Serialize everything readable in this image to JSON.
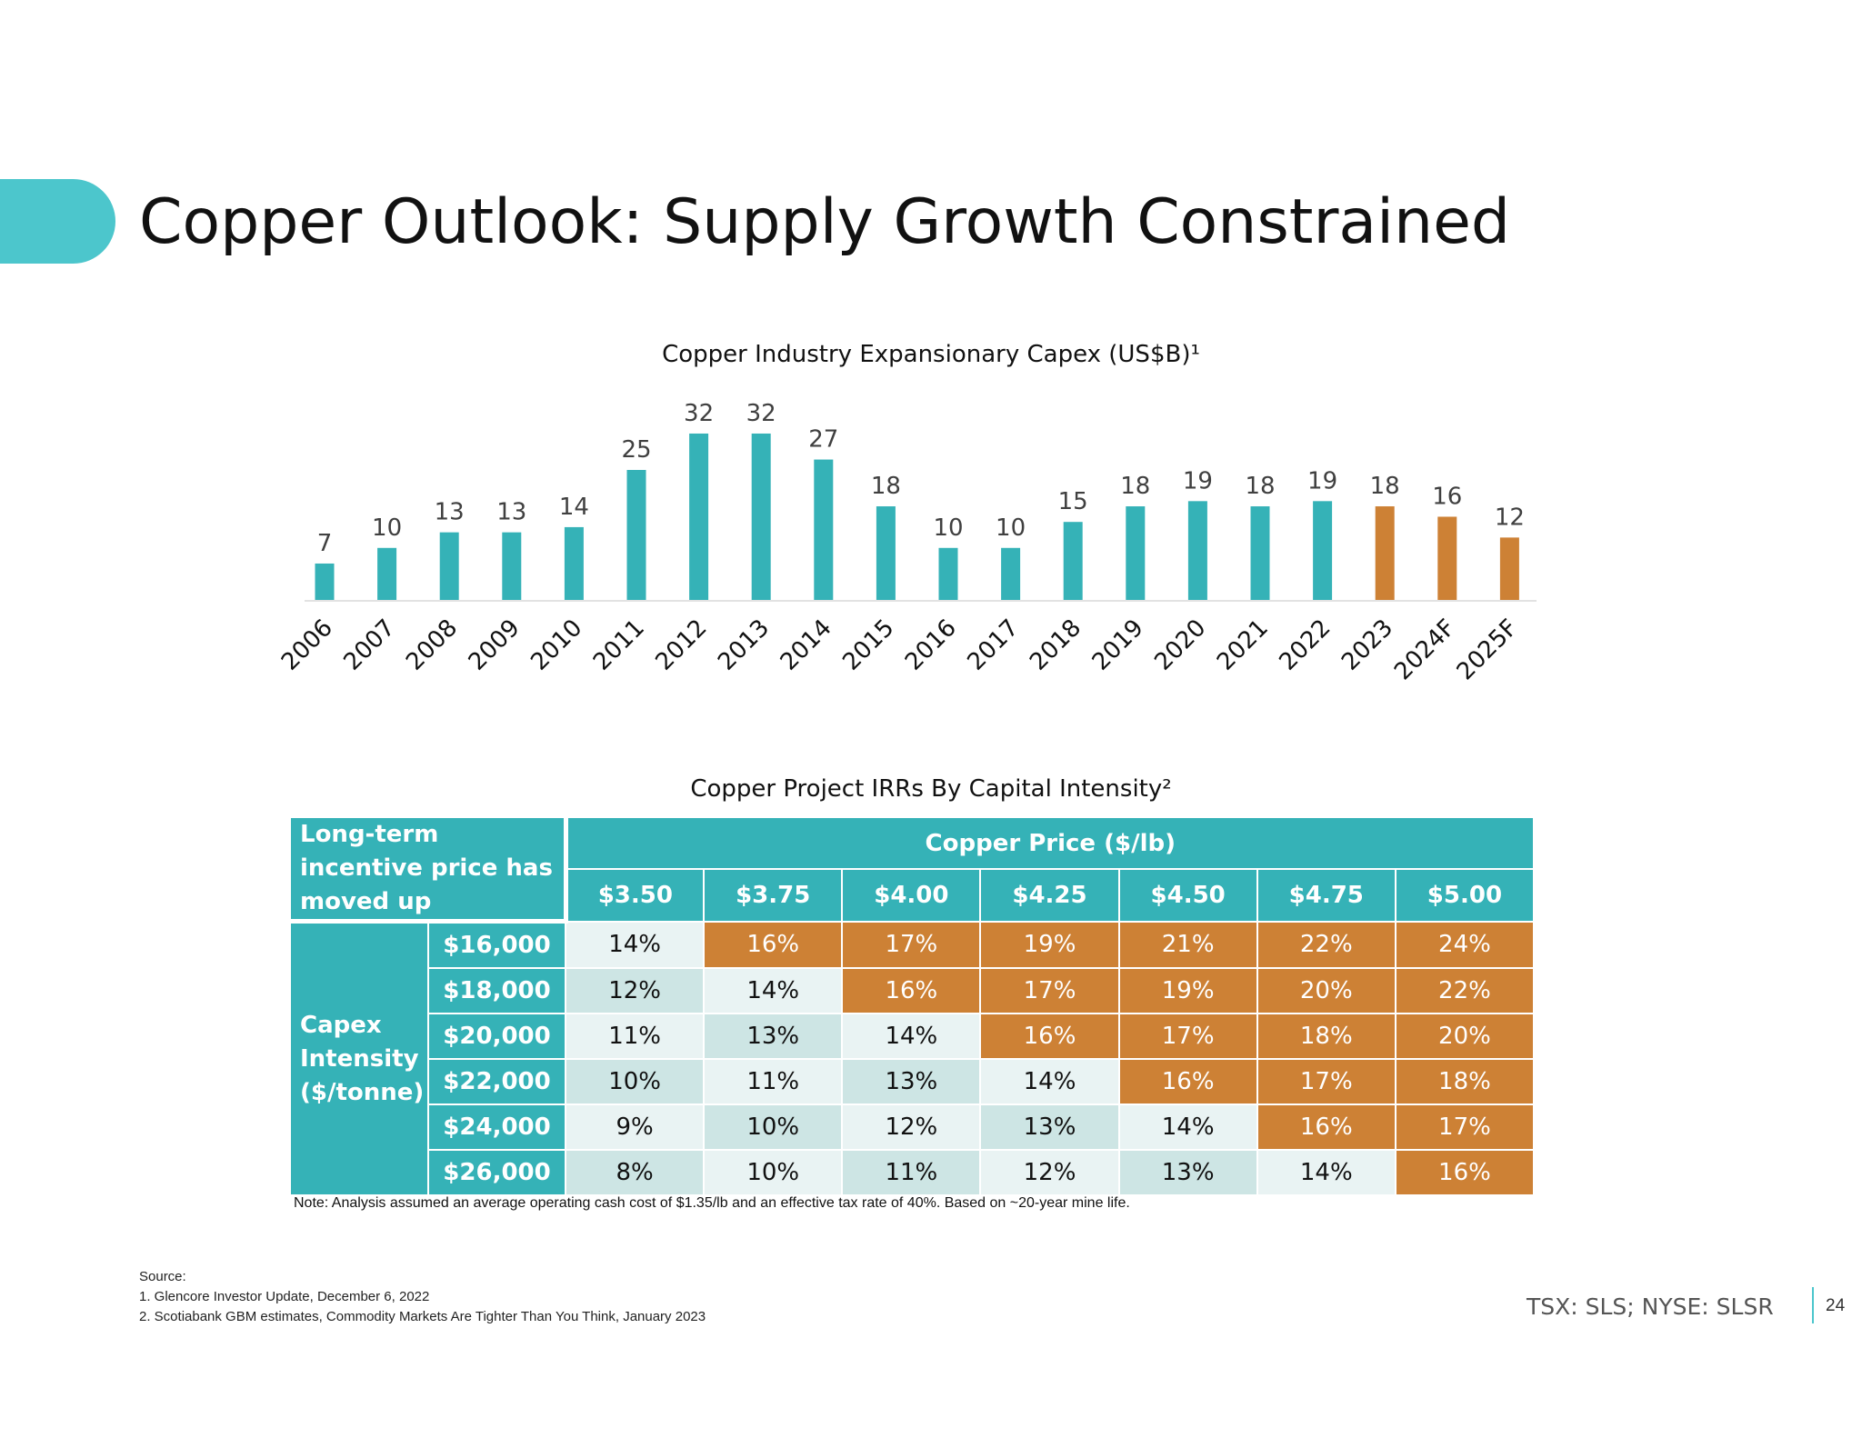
{
  "header": {
    "title": "Copper Outlook: Supply Growth Constrained"
  },
  "chart_data": {
    "type": "bar",
    "title": "Copper Industry Expansionary Capex (US$B)¹",
    "categories": [
      "2006",
      "2007",
      "2008",
      "2009",
      "2010",
      "2011",
      "2012",
      "2013",
      "2014",
      "2015",
      "2016",
      "2017",
      "2018",
      "2019",
      "2020",
      "2021",
      "2022",
      "2023",
      "2024F",
      "2025F"
    ],
    "values": [
      7,
      10,
      13,
      13,
      14,
      25,
      32,
      32,
      27,
      18,
      10,
      10,
      15,
      18,
      19,
      18,
      19,
      18,
      16,
      12
    ],
    "forecast_from_index": 17,
    "ylim": [
      0,
      35
    ],
    "xlabel": "",
    "ylabel": "",
    "grid": false,
    "colors": {
      "actual": "#35b2b7",
      "forecast": "#cd8135"
    }
  },
  "table": {
    "title": "Copper Project IRRs By Capital Intensity²",
    "corner_label": "Long-term incentive price has moved up",
    "price_header": "Copper Price ($/lb)",
    "row_group_label": "Capex Intensity ($/tonne)",
    "prices": [
      "$3.50",
      "$3.75",
      "$4.00",
      "$4.25",
      "$4.50",
      "$4.75",
      "$5.00"
    ],
    "rows": [
      {
        "label": "$16,000",
        "values": [
          "14%",
          "16%",
          "17%",
          "19%",
          "21%",
          "22%",
          "24%"
        ]
      },
      {
        "label": "$18,000",
        "values": [
          "12%",
          "14%",
          "16%",
          "17%",
          "19%",
          "20%",
          "22%"
        ]
      },
      {
        "label": "$20,000",
        "values": [
          "11%",
          "13%",
          "14%",
          "16%",
          "17%",
          "18%",
          "20%"
        ]
      },
      {
        "label": "$22,000",
        "values": [
          "10%",
          "11%",
          "13%",
          "14%",
          "16%",
          "17%",
          "18%"
        ]
      },
      {
        "label": "$24,000",
        "values": [
          "9%",
          "10%",
          "12%",
          "13%",
          "14%",
          "16%",
          "17%"
        ]
      },
      {
        "label": "$26,000",
        "values": [
          "8%",
          "10%",
          "11%",
          "12%",
          "13%",
          "14%",
          "16%"
        ]
      }
    ],
    "highlight_threshold_percent": 15,
    "colors": {
      "highlight": "#cd8135",
      "header": "#35b2b7"
    }
  },
  "note": "Note: Analysis assumed an average operating cash cost of $1.35/lb and an effective tax rate of 40%. Based on ~20-year mine life.",
  "sources": {
    "heading": "Source:",
    "items": [
      "1. Glencore Investor Update, December 6, 2022",
      "2. Scotiabank GBM estimates, Commodity Markets Are Tighter Than You Think, January 2023"
    ]
  },
  "footer": {
    "ticker": "TSX: SLS; NYSE: SLSR",
    "page_number": "24"
  }
}
